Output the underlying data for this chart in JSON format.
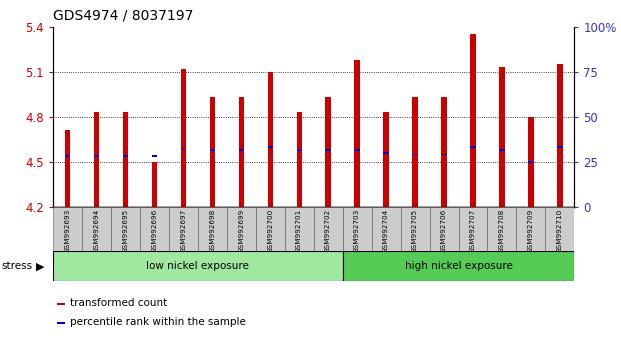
{
  "title": "GDS4974 / 8037197",
  "samples": [
    "GSM992693",
    "GSM992694",
    "GSM992695",
    "GSM992696",
    "GSM992697",
    "GSM992698",
    "GSM992699",
    "GSM992700",
    "GSM992701",
    "GSM992702",
    "GSM992703",
    "GSM992704",
    "GSM992705",
    "GSM992706",
    "GSM992707",
    "GSM992708",
    "GSM992709",
    "GSM992710"
  ],
  "bar_values": [
    4.71,
    4.83,
    4.83,
    4.5,
    5.12,
    4.93,
    4.93,
    5.1,
    4.83,
    4.93,
    5.18,
    4.83,
    4.93,
    4.93,
    5.35,
    5.13,
    4.8,
    5.15
  ],
  "percentile_values": [
    4.54,
    4.54,
    4.54,
    4.54,
    4.59,
    4.58,
    4.58,
    4.6,
    4.58,
    4.58,
    4.58,
    4.56,
    4.55,
    4.55,
    4.6,
    4.58,
    4.5,
    4.6
  ],
  "ymin": 4.2,
  "ymax": 5.4,
  "yticks": [
    4.2,
    4.5,
    4.8,
    5.1,
    5.4
  ],
  "ytick_labels": [
    "4.2",
    "4.5",
    "4.8",
    "5.1",
    "5.4"
  ],
  "right_yticks": [
    0,
    25,
    50,
    75,
    100
  ],
  "right_ytick_labels": [
    "0",
    "25",
    "50",
    "75",
    "100%"
  ],
  "bar_color": "#cc0000",
  "marker_color": "#0000cc",
  "bar_bottom": 4.2,
  "bar_width": 0.18,
  "low_nickel_count": 10,
  "group_low_label": "low nickel exposure",
  "group_high_label": "high nickel exposure",
  "group_low_color": "#a0e8a0",
  "group_high_color": "#55cc55",
  "stress_label": "stress",
  "legend_bar_label": "transformed count",
  "legend_marker_label": "percentile rank within the sample",
  "title_fontsize": 10,
  "axis_label_color_left": "#cc0000",
  "axis_label_color_right": "#3333cc",
  "tick_bg_color": "#cccccc",
  "grid_lines": [
    4.5,
    4.8,
    5.1
  ]
}
